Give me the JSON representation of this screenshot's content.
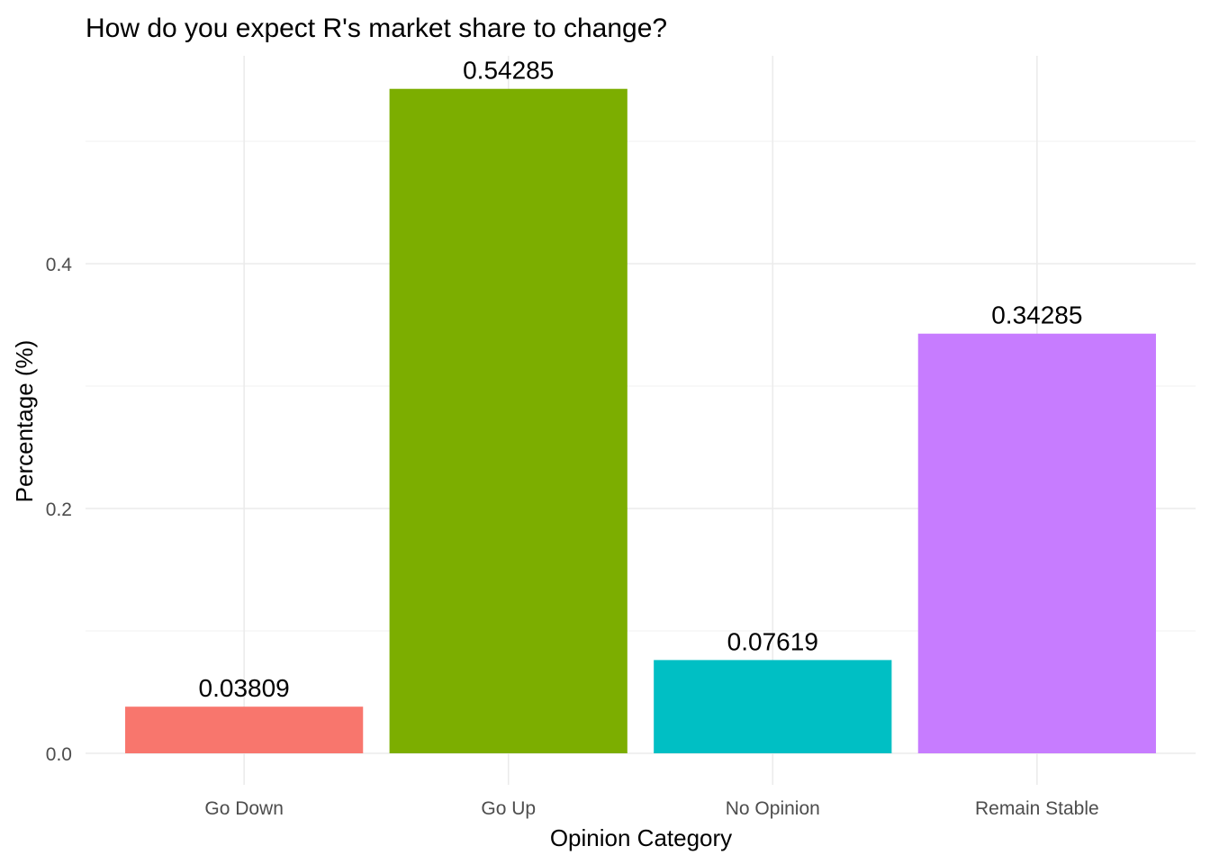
{
  "chart_data": {
    "type": "bar",
    "title": "How do you expect R's market share to change?",
    "xlabel": "Opinion Category",
    "ylabel": "Percentage (%)",
    "categories": [
      "Go Down",
      "Go Up",
      "No Opinion",
      "Remain Stable"
    ],
    "values": [
      0.03809,
      0.54285,
      0.07619,
      0.34285
    ],
    "value_labels": [
      "0.03809",
      "0.54285",
      "0.07619",
      "0.34285"
    ],
    "colors": [
      "#F8766D",
      "#7CAE00",
      "#00BFC4",
      "#C77CFF"
    ],
    "yticks": [
      0.0,
      0.2,
      0.4
    ],
    "ytick_labels": [
      "0.0",
      "0.2",
      "0.4"
    ],
    "ylim": [
      0,
      0.57
    ],
    "grid": true,
    "legend": "none"
  }
}
